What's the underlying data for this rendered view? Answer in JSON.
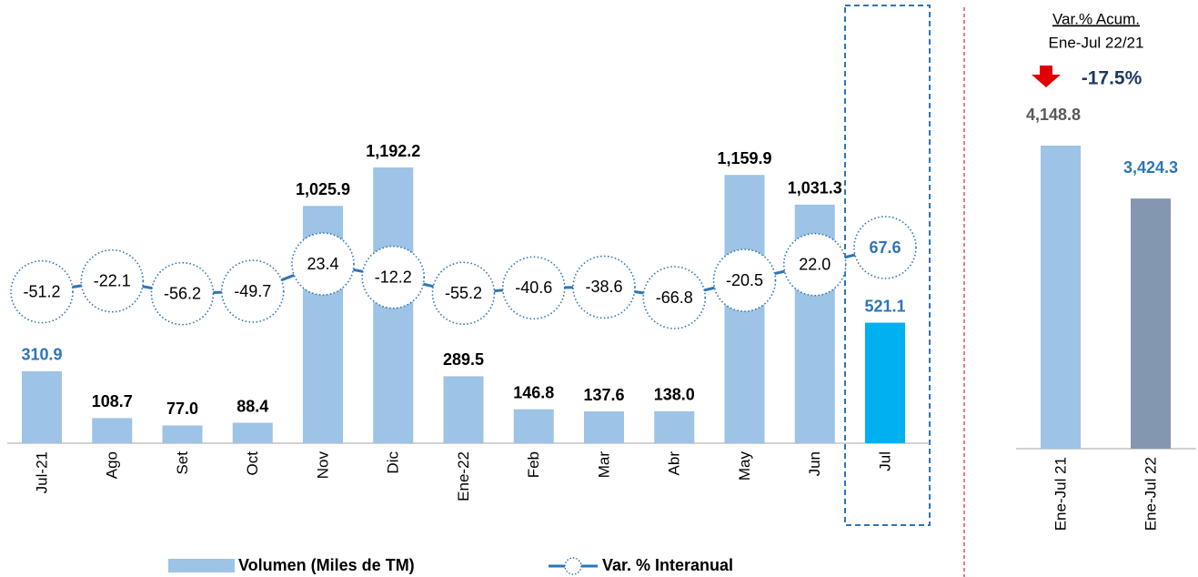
{
  "chart_data": [
    {
      "type": "bar-line",
      "categories": [
        "Jul-21",
        "Ago",
        "Set",
        "Oct",
        "Nov",
        "Dic",
        "Ene-22",
        "Feb",
        "Mar",
        "Abr",
        "May",
        "Jun",
        "Jul"
      ],
      "series": [
        {
          "name": "Volumen (Miles de TM)",
          "color": "#9DC3E6",
          "colors": [
            "#9DC3E6",
            "#9DC3E6",
            "#9DC3E6",
            "#9DC3E6",
            "#9DC3E6",
            "#9DC3E6",
            "#9DC3E6",
            "#9DC3E6",
            "#9DC3E6",
            "#9DC3E6",
            "#9DC3E6",
            "#9DC3E6",
            "#00B0F0"
          ],
          "values": [
            310.9,
            108.7,
            77.0,
            88.4,
            1025.9,
            1192.2,
            289.5,
            146.8,
            137.6,
            138.0,
            1159.9,
            1031.3,
            521.1
          ],
          "value_labels": [
            "310.9",
            "108.7",
            "77.0",
            "88.4",
            "1,025.9",
            "1,192.2",
            "289.5",
            "146.8",
            "137.6",
            "138.0",
            "1,159.9",
            "1,031.3",
            "521.1"
          ],
          "value_label_colors": [
            "#2E75B6",
            "#000000",
            "#000000",
            "#000000",
            "#000000",
            "#000000",
            "#000000",
            "#000000",
            "#000000",
            "#000000",
            "#000000",
            "#000000",
            "#2E75B6"
          ]
        },
        {
          "name": "Var. % Interanual",
          "color": "#2E75B6",
          "axis": "y2",
          "values": [
            -51.2,
            -22.1,
            -56.2,
            -49.7,
            23.4,
            -12.2,
            -55.2,
            -40.6,
            -38.6,
            -66.8,
            -20.5,
            22.0,
            67.6
          ],
          "value_labels": [
            "-51.2",
            "-22.1",
            "-56.2",
            "-49.7",
            "23.4",
            "-12.2",
            "-55.2",
            "-40.6",
            "-38.6",
            "-66.8",
            "-20.5",
            "22.0",
            "67.6"
          ],
          "value_label_colors": [
            "#000000",
            "#000000",
            "#000000",
            "#000000",
            "#000000",
            "#000000",
            "#000000",
            "#000000",
            "#000000",
            "#000000",
            "#000000",
            "#000000",
            "#2E75B6"
          ]
        }
      ]
    },
    {
      "type": "bar",
      "categories": [
        "Ene-Jul 21",
        "Ene-Jul 22"
      ],
      "values": [
        4148.8,
        3424.3
      ],
      "value_labels": [
        "4,148.8",
        "3,424.3"
      ],
      "colors": [
        "#9DC3E6",
        "#8497B0"
      ],
      "value_label_colors": [
        "#595959",
        "#2E75B6"
      ],
      "annotation": {
        "title": "Var.% Acum.",
        "period": "Ene-Jul 22/21",
        "value": -17.5,
        "label": "-17.5%"
      }
    }
  ]
}
